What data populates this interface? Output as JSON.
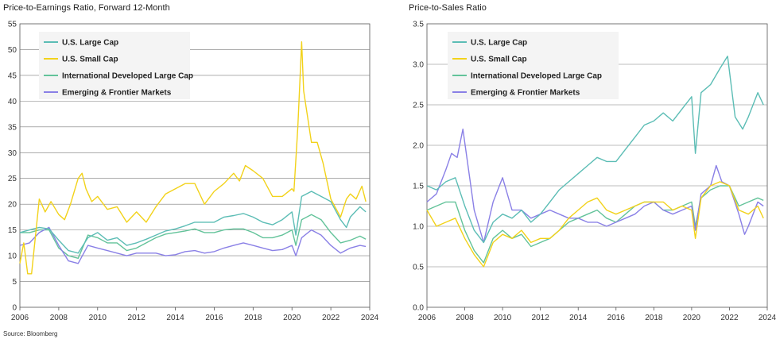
{
  "source": "Source: Bloomberg",
  "colors": {
    "us_large": "#5cbdb5",
    "us_small": "#f2d21a",
    "intl": "#63c39a",
    "em": "#8a80e6",
    "grid": "#7a7a7a",
    "plot_bg": "#ffffff",
    "legend_bg": "#f4f4f4"
  },
  "chart_data": [
    {
      "type": "line",
      "title": "Price-to-Earnings Ratio, Forward 12-Month",
      "xlabel": "",
      "ylabel": "",
      "xlim": [
        2006,
        2024
      ],
      "ylim": [
        0,
        55
      ],
      "xticks": [
        "2006",
        "2008",
        "2010",
        "2012",
        "2014",
        "2016",
        "2018",
        "2020",
        "2022",
        "2024"
      ],
      "yticks": [
        "0",
        "5",
        "10",
        "15",
        "20",
        "25",
        "30",
        "35",
        "40",
        "45",
        "50",
        "55"
      ],
      "grid": "horizontal",
      "legend": "top-left",
      "series": [
        {
          "name": "U.S. Large Cap",
          "color_key": "us_large",
          "x": [
            2006,
            2006.5,
            2007,
            2007.5,
            2008,
            2008.5,
            2009,
            2009.5,
            2010,
            2010.5,
            2011,
            2011.5,
            2012,
            2012.5,
            2013,
            2013.5,
            2014,
            2014.5,
            2015,
            2015.5,
            2016,
            2016.5,
            2017,
            2017.5,
            2018,
            2018.5,
            2019,
            2019.5,
            2020,
            2020.2,
            2020.5,
            2021,
            2021.5,
            2022,
            2022.5,
            2022.8,
            2023,
            2023.5,
            2023.8
          ],
          "y": [
            14.5,
            15,
            15.5,
            15.2,
            13,
            11,
            10.5,
            13.5,
            14.5,
            13,
            13.5,
            12,
            12.5,
            13.2,
            14,
            14.8,
            15.2,
            15.8,
            16.5,
            16.5,
            16.5,
            17.5,
            17.8,
            18.2,
            17.5,
            16.5,
            16,
            17,
            18.5,
            14,
            21.5,
            22.5,
            21.5,
            20.5,
            17,
            15.5,
            17.5,
            19.5,
            18.5
          ]
        },
        {
          "name": "U.S. Small Cap",
          "color_key": "us_small",
          "x": [
            2006,
            2006.2,
            2006.4,
            2006.6,
            2007,
            2007.3,
            2007.6,
            2008,
            2008.3,
            2008.6,
            2009,
            2009.2,
            2009.4,
            2009.7,
            2010,
            2010.5,
            2011,
            2011.5,
            2012,
            2012.5,
            2013,
            2013.5,
            2014,
            2014.5,
            2015,
            2015.5,
            2016,
            2016.5,
            2017,
            2017.3,
            2017.6,
            2018,
            2018.5,
            2019,
            2019.5,
            2020,
            2020.1,
            2020.3,
            2020.5,
            2020.6,
            2020.8,
            2021,
            2021.3,
            2021.6,
            2022,
            2022.5,
            2022.8,
            2023,
            2023.3,
            2023.6,
            2023.8
          ],
          "y": [
            8.5,
            12.5,
            6.5,
            6.5,
            21,
            18.5,
            20.5,
            18,
            17,
            20,
            25,
            26,
            23,
            20.5,
            21.5,
            19,
            19.5,
            16.5,
            18.5,
            16.5,
            19.5,
            22,
            23,
            24,
            24,
            20,
            22.5,
            24,
            26,
            24.5,
            27.5,
            26.5,
            25,
            21.5,
            21.5,
            23,
            22.5,
            35,
            51.5,
            42,
            37,
            32,
            32,
            28,
            21,
            17.5,
            21,
            22,
            21,
            23.5,
            20.5
          ]
        },
        {
          "name": "International Developed Large Cap",
          "color_key": "intl",
          "x": [
            2006,
            2006.5,
            2007,
            2007.5,
            2008,
            2008.5,
            2009,
            2009.5,
            2010,
            2010.5,
            2011,
            2011.5,
            2012,
            2012.5,
            2013,
            2013.5,
            2014,
            2014.5,
            2015,
            2015.5,
            2016,
            2016.5,
            2017,
            2017.5,
            2018,
            2018.5,
            2019,
            2019.5,
            2020,
            2020.2,
            2020.5,
            2021,
            2021.5,
            2022,
            2022.5,
            2023,
            2023.5,
            2023.8
          ],
          "y": [
            14.5,
            14.5,
            15,
            15,
            11.5,
            10,
            9.5,
            14,
            13.5,
            12.5,
            12.5,
            11,
            11.5,
            12.5,
            13.5,
            14.2,
            14.5,
            14.8,
            15.2,
            14.5,
            14.5,
            15,
            15.2,
            15.2,
            14.5,
            13.5,
            13.5,
            14,
            15,
            12,
            17,
            18,
            17,
            14.5,
            12.5,
            13,
            13.8,
            13.2
          ]
        },
        {
          "name": "Emerging & Frontier Markets",
          "color_key": "em",
          "x": [
            2006,
            2006.5,
            2007,
            2007.5,
            2008,
            2008.5,
            2009,
            2009.5,
            2010,
            2010.5,
            2011,
            2011.5,
            2012,
            2012.5,
            2013,
            2013.5,
            2014,
            2014.5,
            2015,
            2015.5,
            2016,
            2016.5,
            2017,
            2017.5,
            2018,
            2018.5,
            2019,
            2019.5,
            2020,
            2020.2,
            2020.5,
            2021,
            2021.5,
            2022,
            2022.5,
            2023,
            2023.5,
            2023.8
          ],
          "y": [
            12,
            12.5,
            14.5,
            15.5,
            12,
            9,
            8.5,
            12,
            11.5,
            11,
            10.5,
            10,
            10.5,
            10.5,
            10.5,
            10,
            10.2,
            10.8,
            11,
            10.5,
            10.8,
            11.5,
            12,
            12.5,
            12,
            11.5,
            11,
            11.2,
            12,
            10,
            13.5,
            15,
            14,
            12,
            10.5,
            11.5,
            12,
            11.8
          ]
        }
      ]
    },
    {
      "type": "line",
      "title": "Price-to-Sales Ratio",
      "xlabel": "",
      "ylabel": "",
      "xlim": [
        2006,
        2024
      ],
      "ylim": [
        0,
        3.5
      ],
      "xticks": [
        "2006",
        "2008",
        "2010",
        "2012",
        "2014",
        "2016",
        "2018",
        "2020",
        "2022",
        "2024"
      ],
      "yticks": [
        "0.0",
        "0.5",
        "1.0",
        "1.5",
        "2.0",
        "2.5",
        "3.0",
        "3.5"
      ],
      "grid": "horizontal",
      "legend": "top-left",
      "series": [
        {
          "name": "U.S. Large Cap",
          "color_key": "us_large",
          "x": [
            2006,
            2006.5,
            2007,
            2007.5,
            2008,
            2008.5,
            2009,
            2009.5,
            2010,
            2010.5,
            2011,
            2011.5,
            2012,
            2012.5,
            2013,
            2013.5,
            2014,
            2014.5,
            2015,
            2015.5,
            2016,
            2016.5,
            2017,
            2017.5,
            2018,
            2018.5,
            2019,
            2019.5,
            2020,
            2020.2,
            2020.5,
            2021,
            2021.5,
            2021.9,
            2022.3,
            2022.7,
            2023,
            2023.5,
            2023.8
          ],
          "y": [
            1.5,
            1.45,
            1.55,
            1.6,
            1.25,
            0.95,
            0.8,
            1.05,
            1.15,
            1.1,
            1.2,
            1.05,
            1.15,
            1.3,
            1.45,
            1.55,
            1.65,
            1.75,
            1.85,
            1.8,
            1.8,
            1.95,
            2.1,
            2.25,
            2.3,
            2.4,
            2.3,
            2.45,
            2.6,
            1.9,
            2.65,
            2.75,
            2.95,
            3.1,
            2.35,
            2.2,
            2.35,
            2.65,
            2.5
          ]
        },
        {
          "name": "U.S. Small Cap",
          "color_key": "us_small",
          "x": [
            2006,
            2006.5,
            2007,
            2007.5,
            2008,
            2008.5,
            2009,
            2009.5,
            2010,
            2010.5,
            2011,
            2011.5,
            2012,
            2012.5,
            2013,
            2013.5,
            2014,
            2014.5,
            2015,
            2015.5,
            2016,
            2016.5,
            2017,
            2017.5,
            2018,
            2018.5,
            2019,
            2019.5,
            2020,
            2020.2,
            2020.5,
            2021,
            2021.5,
            2022,
            2022.5,
            2023,
            2023.5,
            2023.8
          ],
          "y": [
            1.2,
            1.0,
            1.05,
            1.1,
            0.85,
            0.65,
            0.5,
            0.8,
            0.9,
            0.85,
            0.95,
            0.8,
            0.85,
            0.85,
            0.95,
            1.1,
            1.2,
            1.3,
            1.35,
            1.2,
            1.15,
            1.2,
            1.25,
            1.3,
            1.3,
            1.3,
            1.2,
            1.25,
            1.2,
            0.85,
            1.35,
            1.5,
            1.55,
            1.5,
            1.2,
            1.15,
            1.25,
            1.1
          ]
        },
        {
          "name": "International Developed Large Cap",
          "color_key": "intl",
          "x": [
            2006,
            2006.5,
            2007,
            2007.5,
            2008,
            2008.5,
            2009,
            2009.5,
            2010,
            2010.5,
            2011,
            2011.5,
            2012,
            2012.5,
            2013,
            2013.5,
            2014,
            2014.5,
            2015,
            2015.5,
            2016,
            2016.5,
            2017,
            2017.5,
            2018,
            2018.5,
            2019,
            2019.5,
            2020,
            2020.2,
            2020.5,
            2021,
            2021.5,
            2022,
            2022.5,
            2023,
            2023.5,
            2023.8
          ],
          "y": [
            1.2,
            1.25,
            1.3,
            1.3,
            0.95,
            0.7,
            0.55,
            0.85,
            0.95,
            0.85,
            0.9,
            0.75,
            0.8,
            0.85,
            0.95,
            1.05,
            1.1,
            1.15,
            1.2,
            1.1,
            1.05,
            1.15,
            1.25,
            1.3,
            1.3,
            1.2,
            1.2,
            1.25,
            1.3,
            1.0,
            1.35,
            1.45,
            1.5,
            1.5,
            1.25,
            1.3,
            1.35,
            1.32
          ]
        },
        {
          "name": "Emerging & Frontier Markets",
          "color_key": "em",
          "x": [
            2006,
            2006.5,
            2007,
            2007.3,
            2007.6,
            2007.9,
            2008.2,
            2008.5,
            2009,
            2009.5,
            2010,
            2010.5,
            2011,
            2011.5,
            2012,
            2012.5,
            2013,
            2013.5,
            2014,
            2014.5,
            2015,
            2015.5,
            2016,
            2016.5,
            2017,
            2017.5,
            2018,
            2018.5,
            2019,
            2019.5,
            2020,
            2020.2,
            2020.5,
            2021,
            2021.3,
            2021.6,
            2022,
            2022.5,
            2022.8,
            2023,
            2023.5,
            2023.8
          ],
          "y": [
            1.3,
            1.4,
            1.7,
            1.9,
            1.85,
            2.2,
            1.7,
            1.2,
            0.8,
            1.3,
            1.6,
            1.2,
            1.2,
            1.1,
            1.15,
            1.2,
            1.15,
            1.1,
            1.1,
            1.05,
            1.05,
            1.0,
            1.05,
            1.1,
            1.15,
            1.25,
            1.3,
            1.2,
            1.15,
            1.2,
            1.25,
            0.95,
            1.4,
            1.5,
            1.75,
            1.55,
            1.5,
            1.15,
            0.9,
            1.0,
            1.3,
            1.25
          ]
        }
      ]
    }
  ]
}
